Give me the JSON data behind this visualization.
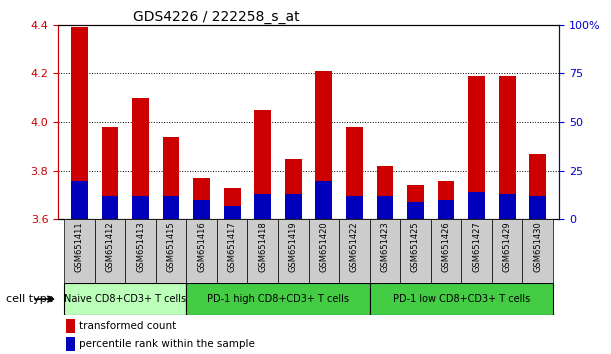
{
  "title": "GDS4226 / 222258_s_at",
  "samples": [
    "GSM651411",
    "GSM651412",
    "GSM651413",
    "GSM651415",
    "GSM651416",
    "GSM651417",
    "GSM651418",
    "GSM651419",
    "GSM651420",
    "GSM651422",
    "GSM651423",
    "GSM651425",
    "GSM651426",
    "GSM651427",
    "GSM651429",
    "GSM651430"
  ],
  "transformed_count": [
    4.39,
    3.98,
    4.1,
    3.94,
    3.77,
    3.73,
    4.05,
    3.85,
    4.21,
    3.98,
    3.82,
    3.74,
    3.76,
    4.19,
    4.19,
    3.87
  ],
  "percentile_rank": [
    20,
    12,
    12,
    12,
    10,
    7,
    13,
    13,
    20,
    12,
    12,
    9,
    10,
    14,
    13,
    12
  ],
  "ylim_left": [
    3.6,
    4.4
  ],
  "ylim_right": [
    0,
    100
  ],
  "yticks_left": [
    3.6,
    3.8,
    4.0,
    4.2,
    4.4
  ],
  "yticks_right": [
    0,
    25,
    50,
    75,
    100
  ],
  "ytick_labels_right": [
    "0",
    "25",
    "50",
    "75",
    "100%"
  ],
  "cell_groups": [
    {
      "label": "Naive CD8+CD3+ T cells",
      "start": 0,
      "end": 4,
      "color": "#bbffbb"
    },
    {
      "label": "PD-1 high CD8+CD3+ T cells",
      "start": 4,
      "end": 10,
      "color": "#44cc44"
    },
    {
      "label": "PD-1 low CD8+CD3+ T cells",
      "start": 10,
      "end": 16,
      "color": "#44cc44"
    }
  ],
  "bar_color_red": "#cc0000",
  "bar_color_blue": "#0000bb",
  "bar_width": 0.55,
  "left_axis_color": "#cc0000",
  "right_axis_color": "#0000cc",
  "legend_red_label": "transformed count",
  "legend_blue_label": "percentile rank within the sample",
  "cell_type_label": "cell type",
  "bar_bottom": 3.6
}
